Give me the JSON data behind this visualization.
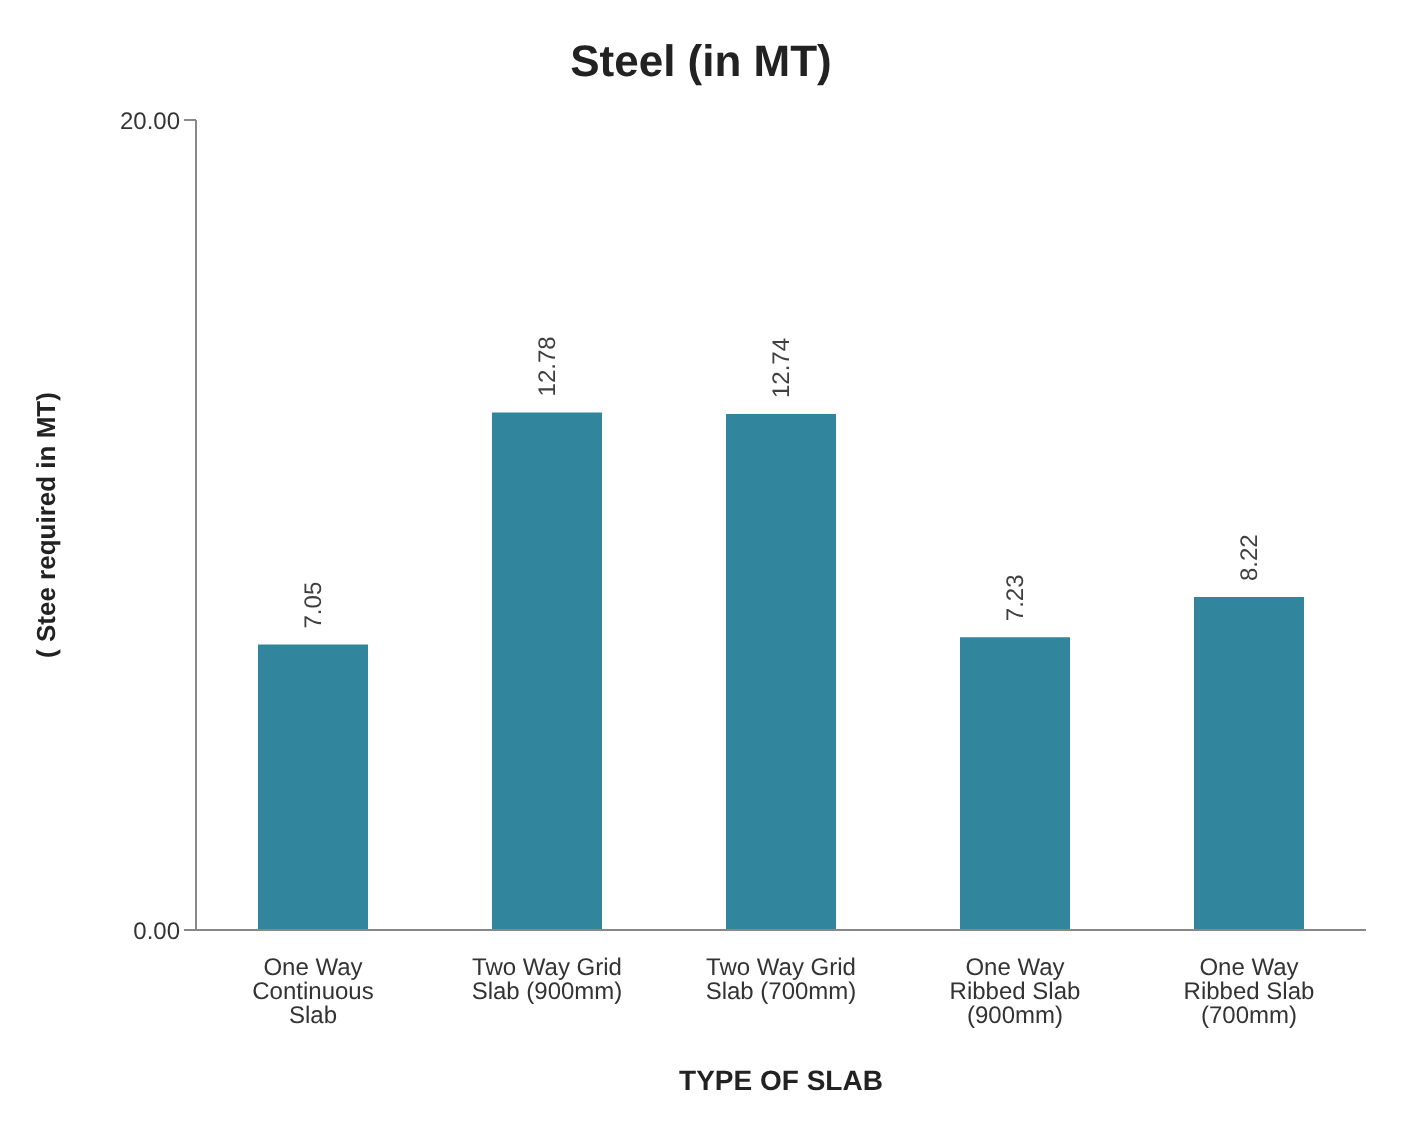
{
  "chart_data": {
    "type": "bar",
    "title": "Steel (in MT)",
    "xlabel": "TYPE OF SLAB",
    "ylabel": "( Stee required in MT)",
    "categories": [
      "One Way Continuous Slab",
      "Two Way Grid Slab (900mm)",
      "Two Way Grid Slab (700mm)",
      "One Way Ribbed Slab (900mm)",
      "One Way Ribbed Slab (700mm)"
    ],
    "values": [
      7.05,
      12.78,
      12.74,
      7.23,
      8.22
    ],
    "color": "#31859c",
    "ylim": [
      0,
      20
    ],
    "yticks": [
      {
        "value": 0,
        "label": "0.00"
      },
      {
        "value": 20,
        "label": "20.00"
      }
    ],
    "data_labels": true,
    "grid": false
  }
}
